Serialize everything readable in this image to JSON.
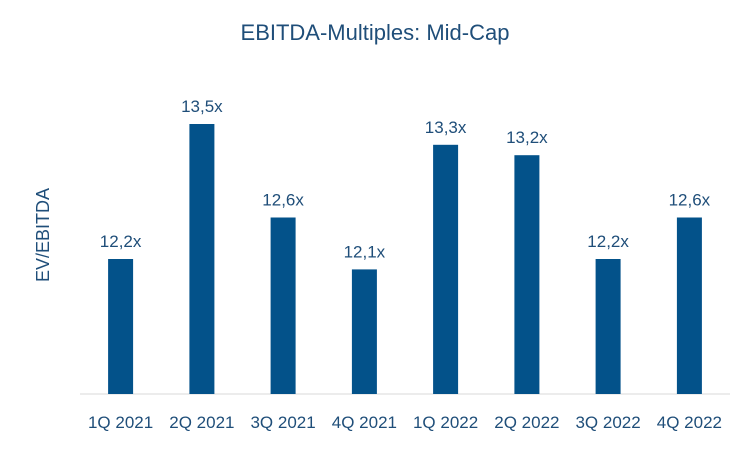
{
  "chart_data": {
    "type": "bar",
    "title": "EBITDA-Multiples: Mid-Cap",
    "xlabel": "",
    "ylabel": "EV/EBITDA",
    "categories": [
      "1Q 2021",
      "2Q 2021",
      "3Q 2021",
      "4Q 2021",
      "1Q 2022",
      "2Q 2022",
      "3Q 2022",
      "4Q 2022"
    ],
    "values": [
      12.2,
      13.5,
      12.6,
      12.1,
      13.3,
      13.2,
      12.2,
      12.6
    ],
    "data_labels": [
      "12,2x",
      "13,5x",
      "12,6x",
      "12,1x",
      "13,3x",
      "13,2x",
      "12,2x",
      "12,6x"
    ],
    "ylim": [
      10.9,
      13.5
    ],
    "grid": false,
    "legend": "none",
    "bar_color": "#03528a",
    "axis_color": "#d9d9d9",
    "text_color": "#1f4e79"
  }
}
